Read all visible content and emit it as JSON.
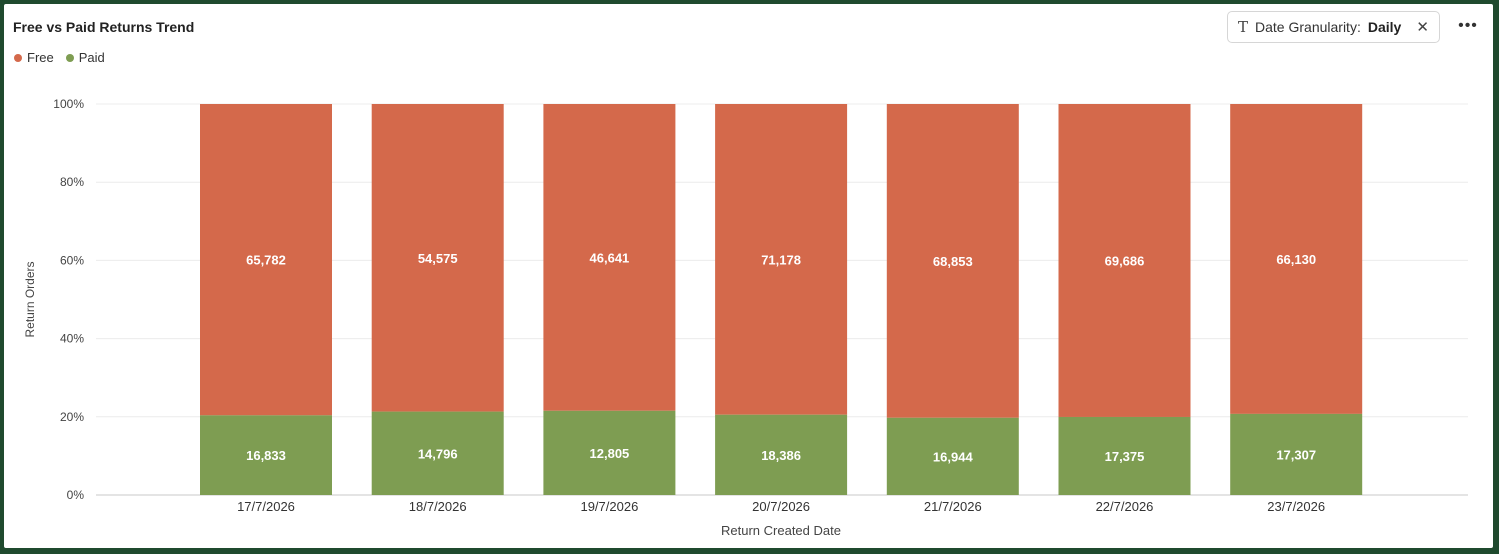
{
  "title": "Free vs Paid Returns Trend",
  "legend": [
    {
      "label": "Free",
      "color": "#d4694b"
    },
    {
      "label": "Paid",
      "color": "#7e9d52"
    }
  ],
  "filter": {
    "icon": "text-type-icon",
    "label": "Date Granularity:",
    "value": "Daily"
  },
  "chart_data": {
    "type": "bar",
    "stacked": true,
    "normalized": true,
    "categories": [
      "17/7/2026",
      "18/7/2026",
      "19/7/2026",
      "20/7/2026",
      "21/7/2026",
      "22/7/2026",
      "23/7/2026"
    ],
    "series": [
      {
        "name": "Paid",
        "color": "#7e9d52",
        "values": [
          16833,
          14796,
          12805,
          18386,
          16944,
          17375,
          17307
        ]
      },
      {
        "name": "Free",
        "color": "#d4694b",
        "values": [
          65782,
          54575,
          46641,
          71178,
          68853,
          69686,
          66130
        ]
      }
    ],
    "ylabel": "Return Orders",
    "xlabel": "Return Created Date",
    "yticks": [
      "0%",
      "20%",
      "40%",
      "60%",
      "80%",
      "100%"
    ],
    "ylim": [
      0,
      100
    ],
    "grid": true,
    "legend_position": "top-left"
  }
}
